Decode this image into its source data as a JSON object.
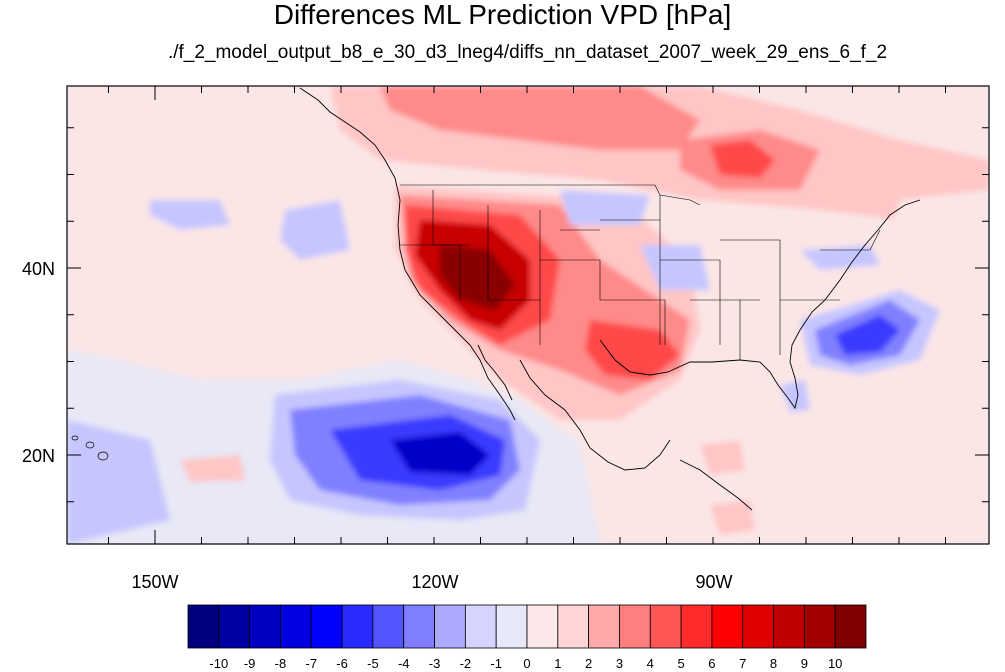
{
  "title": "Differences ML Prediction VPD [hPa]",
  "subtitle": "./f_2_model_output_b8_e_30_d3_lneg4/diffs_nn_dataset_2007_week_29_ens_6_f_2",
  "axes": {
    "lat_labels": [
      "40N",
      "20N"
    ],
    "lon_labels": [
      "150W",
      "120W",
      "90W"
    ]
  },
  "colorbar": {
    "labels": [
      "-10",
      "-9",
      "-8",
      "-7",
      "-6",
      "-5",
      "-4",
      "-3",
      "-2",
      "-1",
      "0",
      "1",
      "2",
      "3",
      "4",
      "5",
      "6",
      "7",
      "8",
      "9",
      "10"
    ],
    "colors": [
      "#00007f",
      "#0000a0",
      "#0000c0",
      "#0000e0",
      "#0000ff",
      "#2a2aff",
      "#5555ff",
      "#7f7fff",
      "#aaaaff",
      "#d4d4ff",
      "#e8e8fb",
      "#fce8e8",
      "#ffd4d4",
      "#ffaaaa",
      "#ff7f7f",
      "#ff5555",
      "#ff2a2a",
      "#ff0000",
      "#e00000",
      "#c00000",
      "#a00000",
      "#7f0000"
    ]
  },
  "field_colors": {
    "ocean_neutral": "#e8e8f6",
    "light_pink": "#fbe6e6",
    "pink": "#ffc6c6",
    "med_red": "#ff8a8a",
    "red": "#ff4a4a",
    "dark_red": "#c80000",
    "deep_red": "#8a0000",
    "light_blue": "#c6c6ff",
    "med_blue": "#8080ff",
    "blue": "#3a3aff",
    "dark_blue": "#0000c8"
  }
}
